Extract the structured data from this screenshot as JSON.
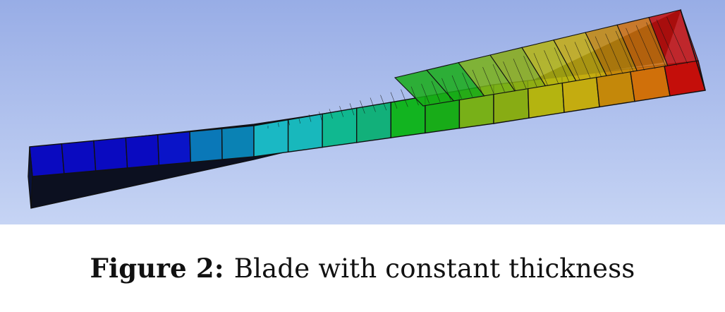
{
  "caption": {
    "label": "Figure 2:",
    "text": "Blade with constant thickness"
  },
  "figure": {
    "background_top": "#98ade6",
    "background_bottom": "#c6d4f4",
    "mesh_line_color": "#111111",
    "contour_colors": [
      "#0a0ac0",
      "#0a0ac0",
      "#0a0ac0",
      "#0a0ac0",
      "#0a14c8",
      "#0a78b8",
      "#0a82b4",
      "#1ab8c4",
      "#18b8bc",
      "#10b890",
      "#12b07a",
      "#12b420",
      "#18ac18",
      "#78b018",
      "#88ac14",
      "#b4b410",
      "#c4ac10",
      "#c4880a",
      "#d0700a",
      "#c40e0a"
    ]
  }
}
